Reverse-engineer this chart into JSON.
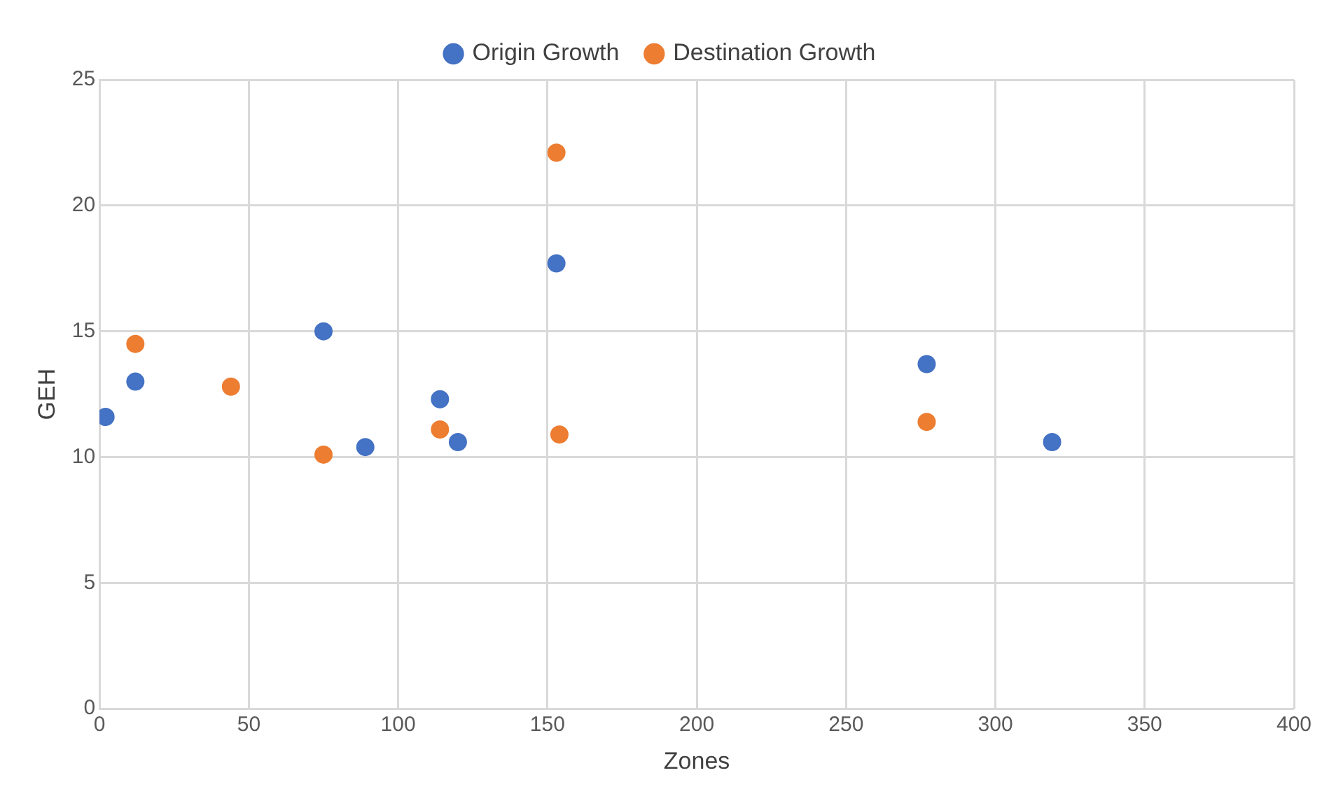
{
  "chart_data": {
    "type": "scatter",
    "xlabel": "Zones",
    "ylabel": "GEH",
    "xlim": [
      0,
      400
    ],
    "xticks": [
      0,
      50,
      100,
      150,
      200,
      250,
      300,
      350,
      400
    ],
    "ylim": [
      0,
      25
    ],
    "yticks": [
      0,
      5,
      10,
      15,
      20,
      25
    ],
    "grid": true,
    "legend": "top",
    "marker": "circle",
    "series": [
      {
        "name": "Origin Growth",
        "color": "#4472c4",
        "x": [
          2,
          12,
          75,
          89,
          114,
          120,
          153,
          277,
          319
        ],
        "values": [
          11.6,
          13.0,
          15.0,
          10.4,
          12.3,
          10.6,
          17.7,
          13.7,
          10.6
        ]
      },
      {
        "name": "Destination Growth",
        "color": "#ed7d31",
        "x": [
          12,
          44,
          75,
          114,
          153,
          154,
          277
        ],
        "values": [
          14.5,
          12.8,
          10.1,
          11.1,
          22.1,
          10.9,
          11.4
        ]
      }
    ]
  }
}
